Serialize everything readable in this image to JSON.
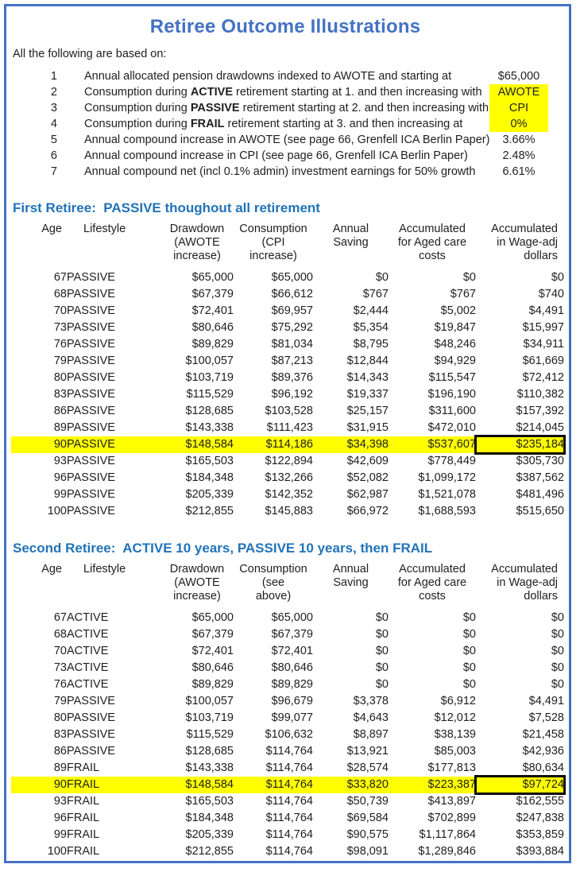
{
  "page": {
    "title": "Retiree Outcome Illustrations",
    "intro": "All the following are based on:"
  },
  "colors": {
    "frame_border": "#4472C4",
    "title_blue": "#4472C4",
    "section_blue": "#2173B8",
    "highlight_yellow": "#FFFF00",
    "boxed_cell_border": "#0a0a0a"
  },
  "assumptions": [
    {
      "num": "1",
      "pre": "Annual allocated pension drawdowns indexed to AWOTE and starting at",
      "bold": "",
      "post": "",
      "value": "$65,000",
      "value_highlight": false
    },
    {
      "num": "2",
      "pre": "Consumption during ",
      "bold": "ACTIVE",
      "post": " retirement starting at 1. and then increasing with",
      "value": "AWOTE",
      "value_highlight": true
    },
    {
      "num": "3",
      "pre": "Consumption during ",
      "bold": "PASSIVE",
      "post": " retirement starting at 2. and  then increasing with",
      "value": "CPI",
      "value_highlight": true
    },
    {
      "num": "4",
      "pre": "Consumption during ",
      "bold": "FRAIL",
      "post": " retirement starting at 3. and  then increasing at",
      "value": "0%",
      "value_highlight": true
    },
    {
      "num": "5",
      "pre": "Annual compound increase in AWOTE (see page 66, Grenfell ICA Berlin Paper)",
      "bold": "",
      "post": "",
      "value": "3.66%",
      "value_highlight": false
    },
    {
      "num": "6",
      "pre": "Annual compound increase in CPI (see page 66, Grenfell ICA Berlin Paper)",
      "bold": "",
      "post": "",
      "value": "2.48%",
      "value_highlight": false
    },
    {
      "num": "7",
      "pre": "Annual compound net (incl 0.1% admin) investment earnings for 50% growth",
      "bold": "",
      "post": "",
      "value": "6.61%",
      "value_highlight": false
    }
  ],
  "tables": [
    {
      "section_title": "First Retiree:  PASSIVE thoughout all retirement",
      "headers": [
        "Age",
        "Lifestyle",
        "Drawdown\n(AWOTE\nincrease)",
        "Consumption\n(CPI\nincrease)",
        "Annual\nSaving",
        "Accumulated\nfor Aged care\ncosts",
        "Accumulated\nin Wage-adj\ndollars"
      ],
      "rows": [
        {
          "cells": [
            "67",
            "PASSIVE",
            "$65,000",
            "$65,000",
            "$0",
            "$0",
            "$0"
          ],
          "highlight": false
        },
        {
          "cells": [
            "68",
            "PASSIVE",
            "$67,379",
            "$66,612",
            "$767",
            "$767",
            "$740"
          ],
          "highlight": false
        },
        {
          "cells": [
            "70",
            "PASSIVE",
            "$72,401",
            "$69,957",
            "$2,444",
            "$5,002",
            "$4,491"
          ],
          "highlight": false
        },
        {
          "cells": [
            "73",
            "PASSIVE",
            "$80,646",
            "$75,292",
            "$5,354",
            "$19,847",
            "$15,997"
          ],
          "highlight": false
        },
        {
          "cells": [
            "76",
            "PASSIVE",
            "$89,829",
            "$81,034",
            "$8,795",
            "$48,246",
            "$34,911"
          ],
          "highlight": false
        },
        {
          "cells": [
            "79",
            "PASSIVE",
            "$100,057",
            "$87,213",
            "$12,844",
            "$94,929",
            "$61,669"
          ],
          "highlight": false
        },
        {
          "cells": [
            "80",
            "PASSIVE",
            "$103,719",
            "$89,376",
            "$14,343",
            "$115,547",
            "$72,412"
          ],
          "highlight": false
        },
        {
          "cells": [
            "83",
            "PASSIVE",
            "$115,529",
            "$96,192",
            "$19,337",
            "$196,190",
            "$110,382"
          ],
          "highlight": false
        },
        {
          "cells": [
            "86",
            "PASSIVE",
            "$128,685",
            "$103,528",
            "$25,157",
            "$311,600",
            "$157,392"
          ],
          "highlight": false
        },
        {
          "cells": [
            "89",
            "PASSIVE",
            "$143,338",
            "$111,423",
            "$31,915",
            "$472,010",
            "$214,045"
          ],
          "highlight": false
        },
        {
          "cells": [
            "90",
            "PASSIVE",
            "$148,584",
            "$114,186",
            "$34,398",
            "$537,607",
            "$235,184"
          ],
          "highlight": true
        },
        {
          "cells": [
            "93",
            "PASSIVE",
            "$165,503",
            "$122,894",
            "$42,609",
            "$778,449",
            "$305,730"
          ],
          "highlight": false
        },
        {
          "cells": [
            "96",
            "PASSIVE",
            "$184,348",
            "$132,266",
            "$52,082",
            "$1,099,172",
            "$387,562"
          ],
          "highlight": false
        },
        {
          "cells": [
            "99",
            "PASSIVE",
            "$205,339",
            "$142,352",
            "$62,987",
            "$1,521,078",
            "$481,496"
          ],
          "highlight": false
        },
        {
          "cells": [
            "100",
            "PASSIVE",
            "$212,855",
            "$145,883",
            "$66,972",
            "$1,688,593",
            "$515,650"
          ],
          "highlight": false
        }
      ]
    },
    {
      "section_title": "Second Retiree:  ACTIVE 10 years, PASSIVE 10 years, then FRAIL",
      "headers": [
        "Age",
        "Lifestyle",
        "Drawdown\n(AWOTE\nincrease)",
        "Consumption\n(see\nabove)",
        "Annual\nSaving",
        "Accumulated\nfor Aged care\ncosts",
        "Accumulated\nin Wage-adj\ndollars"
      ],
      "rows": [
        {
          "cells": [
            "67",
            "ACTIVE",
            "$65,000",
            "$65,000",
            "$0",
            "$0",
            "$0"
          ],
          "highlight": false
        },
        {
          "cells": [
            "68",
            "ACTIVE",
            "$67,379",
            "$67,379",
            "$0",
            "$0",
            "$0"
          ],
          "highlight": false
        },
        {
          "cells": [
            "70",
            "ACTIVE",
            "$72,401",
            "$72,401",
            "$0",
            "$0",
            "$0"
          ],
          "highlight": false
        },
        {
          "cells": [
            "73",
            "ACTIVE",
            "$80,646",
            "$80,646",
            "$0",
            "$0",
            "$0"
          ],
          "highlight": false
        },
        {
          "cells": [
            "76",
            "ACTIVE",
            "$89,829",
            "$89,829",
            "$0",
            "$0",
            "$0"
          ],
          "highlight": false
        },
        {
          "cells": [
            "79",
            "PASSIVE",
            "$100,057",
            "$96,679",
            "$3,378",
            "$6,912",
            "$4,491"
          ],
          "highlight": false
        },
        {
          "cells": [
            "80",
            "PASSIVE",
            "$103,719",
            "$99,077",
            "$4,643",
            "$12,012",
            "$7,528"
          ],
          "highlight": false
        },
        {
          "cells": [
            "83",
            "PASSIVE",
            "$115,529",
            "$106,632",
            "$8,897",
            "$38,139",
            "$21,458"
          ],
          "highlight": false
        },
        {
          "cells": [
            "86",
            "PASSIVE",
            "$128,685",
            "$114,764",
            "$13,921",
            "$85,003",
            "$42,936"
          ],
          "highlight": false
        },
        {
          "cells": [
            "89",
            "FRAIL",
            "$143,338",
            "$114,764",
            "$28,574",
            "$177,813",
            "$80,634"
          ],
          "highlight": false
        },
        {
          "cells": [
            "90",
            "FRAIL",
            "$148,584",
            "$114,764",
            "$33,820",
            "$223,387",
            "$97,724"
          ],
          "highlight": true
        },
        {
          "cells": [
            "93",
            "FRAIL",
            "$165,503",
            "$114,764",
            "$50,739",
            "$413,897",
            "$162,555"
          ],
          "highlight": false
        },
        {
          "cells": [
            "96",
            "FRAIL",
            "$184,348",
            "$114,764",
            "$69,584",
            "$702,899",
            "$247,838"
          ],
          "highlight": false
        },
        {
          "cells": [
            "99",
            "FRAIL",
            "$205,339",
            "$114,764",
            "$90,575",
            "$1,117,864",
            "$353,859"
          ],
          "highlight": false
        },
        {
          "cells": [
            "100",
            "FRAIL",
            "$212,855",
            "$114,764",
            "$98,091",
            "$1,289,846",
            "$393,884"
          ],
          "highlight": false
        }
      ]
    }
  ]
}
